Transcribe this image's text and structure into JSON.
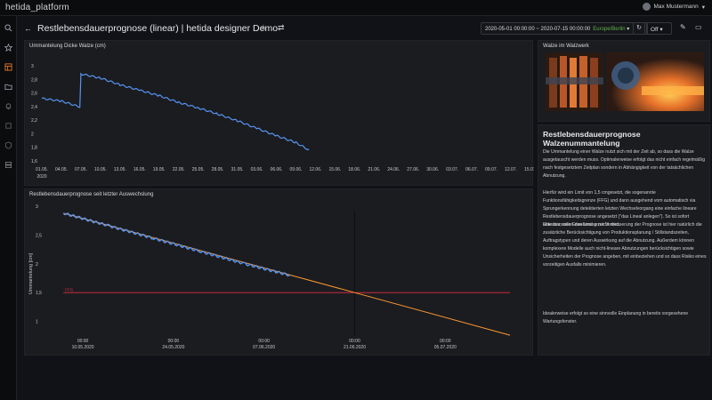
{
  "app": {
    "logo": "hetida_platform",
    "user": "Max Mustermann"
  },
  "dashboard": {
    "title": "Restlebensdauerprognose (linear) | hetida designer Demo"
  },
  "time_range": {
    "label": "2020-05-01 00:00:00 ~ 2020-07-15 00:00:00",
    "timezone": "Europe/Berlin"
  },
  "refresh": {
    "value": "Off"
  },
  "panels": {
    "top_chart_title": "Ummantelung Dicke Walze (cm)",
    "bottom_chart_title": "Restlebensdauerprognose seit letzter Auswechslung",
    "image_title": "Walze im Walzwerk"
  },
  "text_panel": {
    "heading": "Restlebensdauerprognose Walzenummantelung",
    "p1": "Die Ummantelung einer Walze nutzt sich mit der Zeit ab, so dass die Walze ausgetauscht werden muss. Optimalerweise erfolgt das nicht einfach regelmäßig nach festgesetztem Zeitplan sondern in Abhängigkeit von der tatsächlichen Abnutzung.",
    "p2": "Hierfür wird ein Limit von 1,5 cmgesetzt, die sogenannte Funktionsfähigkeitsgrenze (FFG) und dann ausgehend vom automatisch via Sprungerkennung detektierten letzten Wechselvorgang eine einfache lineare Restlebensdauerprognose angesetzt (\"das Lineal anlegen\"). So ist sofort ablesbar, wann das Limit erreicht wird.",
    "p3": "Eine sinnvolle Erweiterung zur Verbesserung der Prognose ist hier natürlich die zusätzliche Berücksichtigung von Produktionsplanung / Stillstandszeiten, Auftragstypen und deren Auswirkung auf die Abnutzung. Außerdem können komplexere Modelle auch nicht-lineare Abnutzungen berücksichtigen sowie Unsicherheiten der Prognose angeben, mit einbeziehen und so dass Risiko eines vorzeitigen Ausfalls minimieren.",
    "p4": "Idealerweise erfolgt so eine sinnvolle Einplanung in bereits vorgesehene Wartungsfenster."
  },
  "colors": {
    "series": "#5794f2",
    "forecast": "#ff9830",
    "limit": "#e02f44",
    "now": "#111111"
  },
  "chart_data": [
    {
      "type": "line",
      "title": "Ummantelung Dicke Walze (cm)",
      "x_ticks": [
        "01.05.2020",
        "04.05.",
        "07.05.",
        "10.05.",
        "13.05.",
        "16.05.",
        "19.05.",
        "22.05.",
        "25.05.",
        "28.05.",
        "31.05.",
        "03.06.",
        "06.06.",
        "09.06.",
        "12.06.",
        "15.06.",
        "18.06.",
        "21.06.",
        "24.06.",
        "27.06.",
        "30.06.",
        "03.07.",
        "06.07.",
        "09.07.",
        "12.07.",
        "15.07."
      ],
      "y_ticks": [
        "1,6",
        "1,8",
        "2",
        "2,2",
        "2,4",
        "2,6",
        "2,8",
        "3"
      ],
      "ylim": [
        1.6,
        3.0
      ],
      "series": [
        {
          "x": [
            "2020-05-01",
            "2020-05-04",
            "2020-05-07",
            "2020-05-07",
            "2020-05-10",
            "2020-05-13",
            "2020-05-16",
            "2020-05-19",
            "2020-05-22",
            "2020-05-25",
            "2020-05-28",
            "2020-05-31",
            "2020-06-03",
            "2020-06-06",
            "2020-06-09",
            "2020-06-11"
          ],
          "y": [
            2.52,
            2.48,
            2.39,
            2.88,
            2.82,
            2.72,
            2.64,
            2.56,
            2.46,
            2.38,
            2.29,
            2.19,
            2.08,
            1.97,
            1.87,
            1.76
          ]
        }
      ]
    },
    {
      "type": "line",
      "title": "Restlebensdauerprognose seit letzter Auswechslung",
      "ylabel": "Ummantelung [cm]",
      "x_ticks": [
        "00:00\n10.05.2020",
        "00:00\n24.05.2020",
        "00:00\n07.06.2020",
        "00:00\n21.06.2020",
        "00:00\n05.07.2020"
      ],
      "y_ticks": [
        "1",
        "1,5",
        "2",
        "2,5",
        "3"
      ],
      "ylim": [
        0.7,
        3.0
      ],
      "limit": {
        "label": "FFG",
        "value": 1.5
      },
      "series": [
        {
          "kind": "measured",
          "x": [
            "2020-05-07",
            "2020-05-14",
            "2020-05-21",
            "2020-05-28",
            "2020-06-04",
            "2020-06-11"
          ],
          "y": [
            2.88,
            2.66,
            2.44,
            2.22,
            2.0,
            1.8
          ]
        },
        {
          "kind": "forecast",
          "x": [
            "2020-05-07",
            "2020-06-21",
            "2020-07-15"
          ],
          "y": [
            2.88,
            1.5,
            0.76
          ]
        }
      ]
    }
  ]
}
